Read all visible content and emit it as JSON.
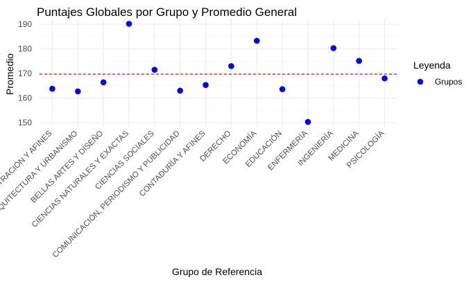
{
  "chart_data": {
    "type": "scatter",
    "title": "Puntajes Globales por Grupo y Promedio General",
    "xlabel": "Grupo de Referencia",
    "ylabel": "Promedio",
    "categories": [
      "ADMINISTRACIÓN Y AFINES",
      "ARQUITECTURA Y URBANISMO",
      "BELLAS ARTES Y DISEÑO",
      "CIENCIAS NATURALES Y EXACTAS",
      "CIENCIAS SOCIALES",
      "COMUNICACIÓN, PERIODISMO Y PUBLICIDAD",
      "CONTADURÍA Y AFINES",
      "DERECHO",
      "ECONOMÍA",
      "EDUCACIÓN",
      "ENFERMERÍA",
      "INGENIERÍA",
      "MEDICINA",
      "PSICOLOGÍA"
    ],
    "series": [
      {
        "name": "Grupos",
        "color": "#0000ff",
        "values": [
          163.8,
          162.7,
          166.4,
          190.2,
          171.5,
          163.0,
          165.3,
          173.0,
          183.3,
          163.6,
          150.3,
          180.3,
          175.1,
          168.0
        ]
      }
    ],
    "reference_line": {
      "y": 169.7,
      "color": "#cc0000",
      "style": "dashed"
    },
    "yticks": [
      150,
      160,
      170,
      180,
      190
    ],
    "ylim": [
      148.3,
      192.0
    ],
    "grid": true,
    "legend": {
      "title": "Leyenda",
      "position": "right"
    }
  }
}
